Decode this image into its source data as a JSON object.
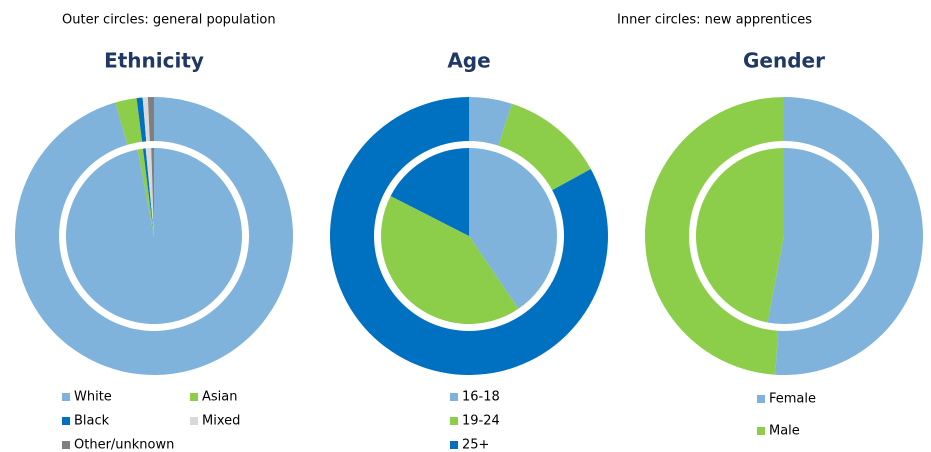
{
  "notes": [
    "Outer circles: general population",
    "Inner circles: new apprentices"
  ],
  "chart_data": [
    {
      "type": "pie",
      "title": "Ethnicity",
      "categories": [
        "White",
        "Asian",
        "Black",
        "Mixed",
        "Other/unknown"
      ],
      "colors": [
        "#7fb3dc",
        "#8cce4a",
        "#0070c0",
        "#d9d9d9",
        "#7f7f7f"
      ],
      "outer": [
        95.5,
        2.5,
        0.7,
        0.6,
        0.7
      ],
      "inner": [
        97,
        1,
        0.5,
        1,
        0.5
      ]
    },
    {
      "type": "pie",
      "title": "Age",
      "categories": [
        "16-18",
        "19-24",
        "25+"
      ],
      "colors": [
        "#7fb3dc",
        "#8cce4a",
        "#0070c0"
      ],
      "outer": [
        5,
        12,
        83
      ],
      "inner": [
        40.5,
        42,
        17.5
      ]
    },
    {
      "type": "pie",
      "title": "Gender",
      "categories": [
        "Female",
        "Male"
      ],
      "colors": [
        "#7fb3dc",
        "#8cce4a"
      ],
      "outer": [
        51,
        49
      ],
      "inner": [
        53,
        47
      ]
    }
  ]
}
